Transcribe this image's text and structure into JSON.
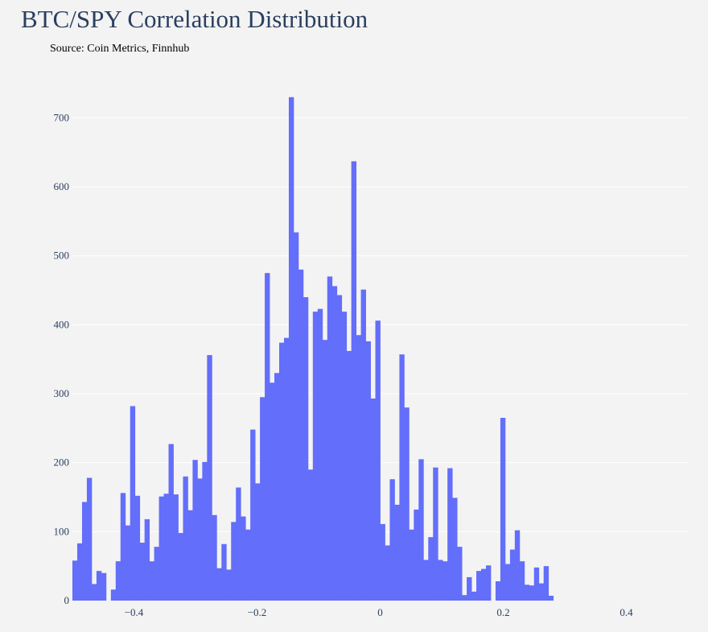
{
  "chart_data": {
    "type": "bar",
    "title": "BTC/SPY Correlation Distribution",
    "subtitle": "Source: Coin Metrics, Finnhub",
    "xlabel": "",
    "ylabel": "",
    "xlim": [
      -0.5,
      0.5
    ],
    "ylim": [
      0,
      760
    ],
    "bin_width": 0.0078125,
    "x_ticks": [
      -0.4,
      -0.2,
      0,
      0.2,
      0.4
    ],
    "x_tick_labels": [
      "−0.4",
      "−0.2",
      "0",
      "0.2",
      "0.4"
    ],
    "y_ticks": [
      0,
      100,
      200,
      300,
      400,
      500,
      600,
      700
    ],
    "y_tick_labels": [
      "0",
      "100",
      "200",
      "300",
      "400",
      "500",
      "600",
      "700"
    ],
    "grid": true,
    "bar_color": "#636efa",
    "values": [
      58,
      83,
      143,
      178,
      24,
      43,
      40,
      0,
      16,
      57,
      156,
      109,
      282,
      152,
      84,
      118,
      57,
      78,
      151,
      155,
      227,
      154,
      98,
      180,
      131,
      204,
      177,
      201,
      356,
      124,
      47,
      82,
      45,
      114,
      164,
      122,
      103,
      248,
      170,
      295,
      475,
      316,
      330,
      374,
      381,
      730,
      534,
      480,
      440,
      190,
      419,
      423,
      378,
      470,
      456,
      443,
      419,
      362,
      637,
      385,
      451,
      376,
      293,
      406,
      111,
      80,
      176,
      139,
      357,
      280,
      103,
      132,
      205,
      59,
      92,
      193,
      59,
      57,
      192,
      149,
      78,
      8,
      34,
      13,
      43,
      46,
      51,
      0,
      28,
      265,
      53,
      74,
      102,
      57,
      23,
      22,
      48,
      25,
      50,
      7
    ]
  }
}
